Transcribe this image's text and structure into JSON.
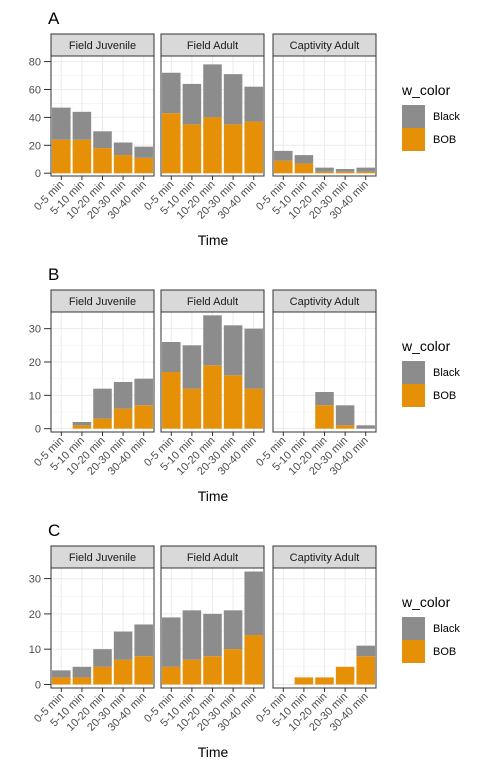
{
  "chart_data": [
    {
      "type": "bar",
      "stacked": true,
      "label": "A",
      "xlabel": "Time",
      "ylabel": "",
      "ylim": [
        -2,
        84
      ],
      "yticks": [
        0,
        20,
        40,
        60,
        80
      ],
      "categories": [
        "0-5 min",
        "5-10 min",
        "10-20 min",
        "20-30 min",
        "30-40 min"
      ],
      "legend": {
        "title": "w_color",
        "position": "right",
        "entries": [
          "Black",
          "BOB"
        ]
      },
      "colors": {
        "Black": "#8c8c8c",
        "BOB": "#e69008"
      },
      "facets": [
        {
          "name": "Field Juvenile",
          "series": [
            {
              "name": "BOB",
              "values": [
                24,
                24,
                18,
                13,
                11
              ]
            },
            {
              "name": "Black",
              "values": [
                23,
                20,
                12,
                9,
                8
              ]
            }
          ]
        },
        {
          "name": "Field Adult",
          "series": [
            {
              "name": "BOB",
              "values": [
                43,
                35,
                40,
                35,
                37
              ]
            },
            {
              "name": "Black",
              "values": [
                29,
                29,
                38,
                36,
                25
              ]
            }
          ]
        },
        {
          "name": "Captivity Adult",
          "series": [
            {
              "name": "BOB",
              "values": [
                9,
                7,
                1,
                1,
                1
              ]
            },
            {
              "name": "Black",
              "values": [
                7,
                6,
                3,
                2,
                3
              ]
            }
          ]
        }
      ]
    },
    {
      "type": "bar",
      "stacked": true,
      "label": "B",
      "xlabel": "Time",
      "ylabel": "",
      "ylim": [
        -1,
        35
      ],
      "yticks": [
        0,
        10,
        20,
        30
      ],
      "categories": [
        "0-5 min",
        "5-10 min",
        "10-20 min",
        "20-30 min",
        "30-40 min"
      ],
      "legend": {
        "title": "w_color",
        "position": "right",
        "entries": [
          "Black",
          "BOB"
        ]
      },
      "colors": {
        "Black": "#8c8c8c",
        "BOB": "#e69008"
      },
      "facets": [
        {
          "name": "Field Juvenile",
          "series": [
            {
              "name": "BOB",
              "values": [
                0,
                1,
                3,
                6,
                7
              ]
            },
            {
              "name": "Black",
              "values": [
                0,
                1,
                9,
                8,
                8
              ]
            }
          ]
        },
        {
          "name": "Field Adult",
          "series": [
            {
              "name": "BOB",
              "values": [
                17,
                12,
                19,
                16,
                12
              ]
            },
            {
              "name": "Black",
              "values": [
                9,
                13,
                15,
                15,
                18
              ]
            }
          ]
        },
        {
          "name": "Captivity Adult",
          "series": [
            {
              "name": "BOB",
              "values": [
                0,
                0,
                7,
                1,
                0
              ]
            },
            {
              "name": "Black",
              "values": [
                0,
                0,
                4,
                6,
                1
              ]
            }
          ]
        }
      ]
    },
    {
      "type": "bar",
      "stacked": true,
      "label": "C",
      "xlabel": "Time",
      "ylabel": "",
      "ylim": [
        -1,
        33
      ],
      "yticks": [
        0,
        10,
        20,
        30
      ],
      "categories": [
        "0-5 min",
        "5-10 min",
        "10-20 min",
        "20-30 min",
        "30-40 min"
      ],
      "legend": {
        "title": "w_color",
        "position": "right",
        "entries": [
          "Black",
          "BOB"
        ]
      },
      "colors": {
        "Black": "#8c8c8c",
        "BOB": "#e69008"
      },
      "facets": [
        {
          "name": "Field Juvenile",
          "series": [
            {
              "name": "BOB",
              "values": [
                2,
                2,
                5,
                7,
                8
              ]
            },
            {
              "name": "Black",
              "values": [
                2,
                3,
                5,
                8,
                9
              ]
            }
          ]
        },
        {
          "name": "Field Adult",
          "series": [
            {
              "name": "BOB",
              "values": [
                5,
                7,
                8,
                10,
                14
              ]
            },
            {
              "name": "Black",
              "values": [
                14,
                14,
                12,
                11,
                18
              ]
            }
          ]
        },
        {
          "name": "Captivity Adult",
          "series": [
            {
              "name": "BOB",
              "values": [
                0,
                2,
                2,
                5,
                8
              ]
            },
            {
              "name": "Black",
              "values": [
                0,
                0,
                0,
                0,
                3
              ]
            }
          ]
        }
      ]
    }
  ]
}
